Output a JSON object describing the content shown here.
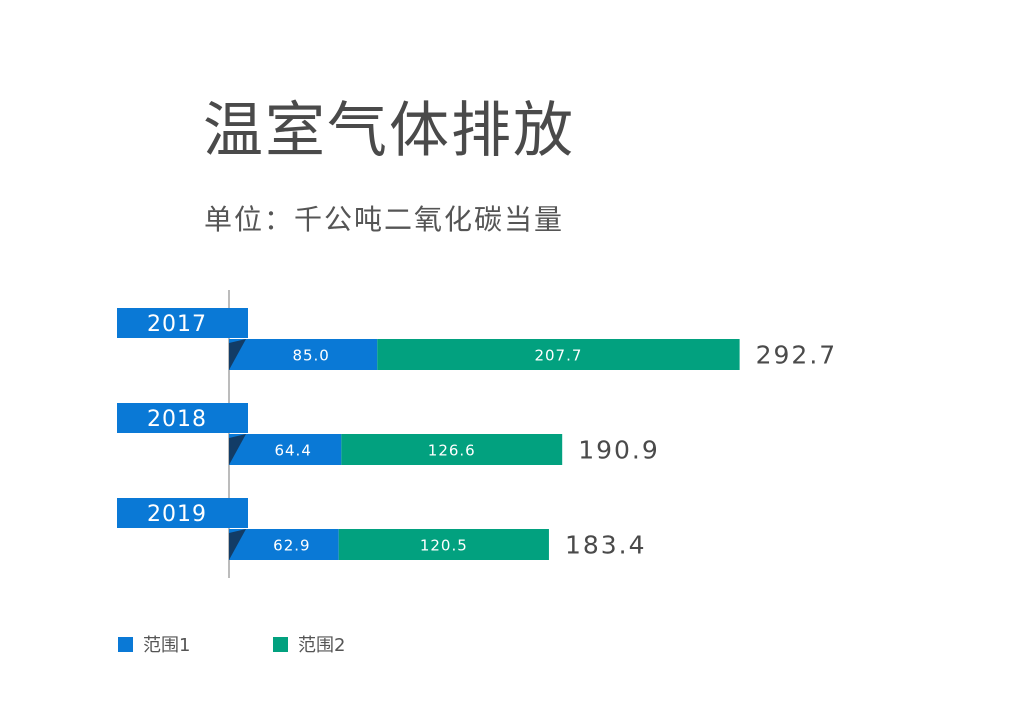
{
  "title": "温室气体排放",
  "subtitle": "单位：千公吨二氧化碳当量",
  "colors": {
    "scope1": "#0a79d6",
    "scope2": "#02a17f",
    "year_tab": "#0a79d6",
    "notch": "#123c66",
    "axis": "#7a7a7a",
    "bar_text": "#ffffff",
    "total_text": "#4a4a4a"
  },
  "legend": [
    {
      "label": "范围1",
      "color": "#0a79d6"
    },
    {
      "label": "范围2",
      "color": "#02a17f"
    }
  ],
  "chart_data": {
    "type": "bar",
    "orientation": "horizontal",
    "stacked": true,
    "categories": [
      "2017",
      "2018",
      "2019"
    ],
    "series": [
      {
        "name": "范围1",
        "values": [
          85.0,
          64.4,
          62.9
        ]
      },
      {
        "name": "范围2",
        "values": [
          207.7,
          126.6,
          120.5
        ]
      }
    ],
    "value_labels": [
      [
        "85.0",
        "64.4",
        "62.9"
      ],
      [
        "207.7",
        "126.6",
        "120.5"
      ]
    ],
    "totals": [
      292.7,
      190.9,
      183.4
    ],
    "total_labels": [
      "292.7",
      "190.9",
      "183.4"
    ],
    "title": "温室气体排放",
    "subtitle": "单位：千公吨二氧化碳当量",
    "xlabel": "",
    "ylabel": "",
    "grid": false,
    "legend_position": "bottom-left"
  }
}
